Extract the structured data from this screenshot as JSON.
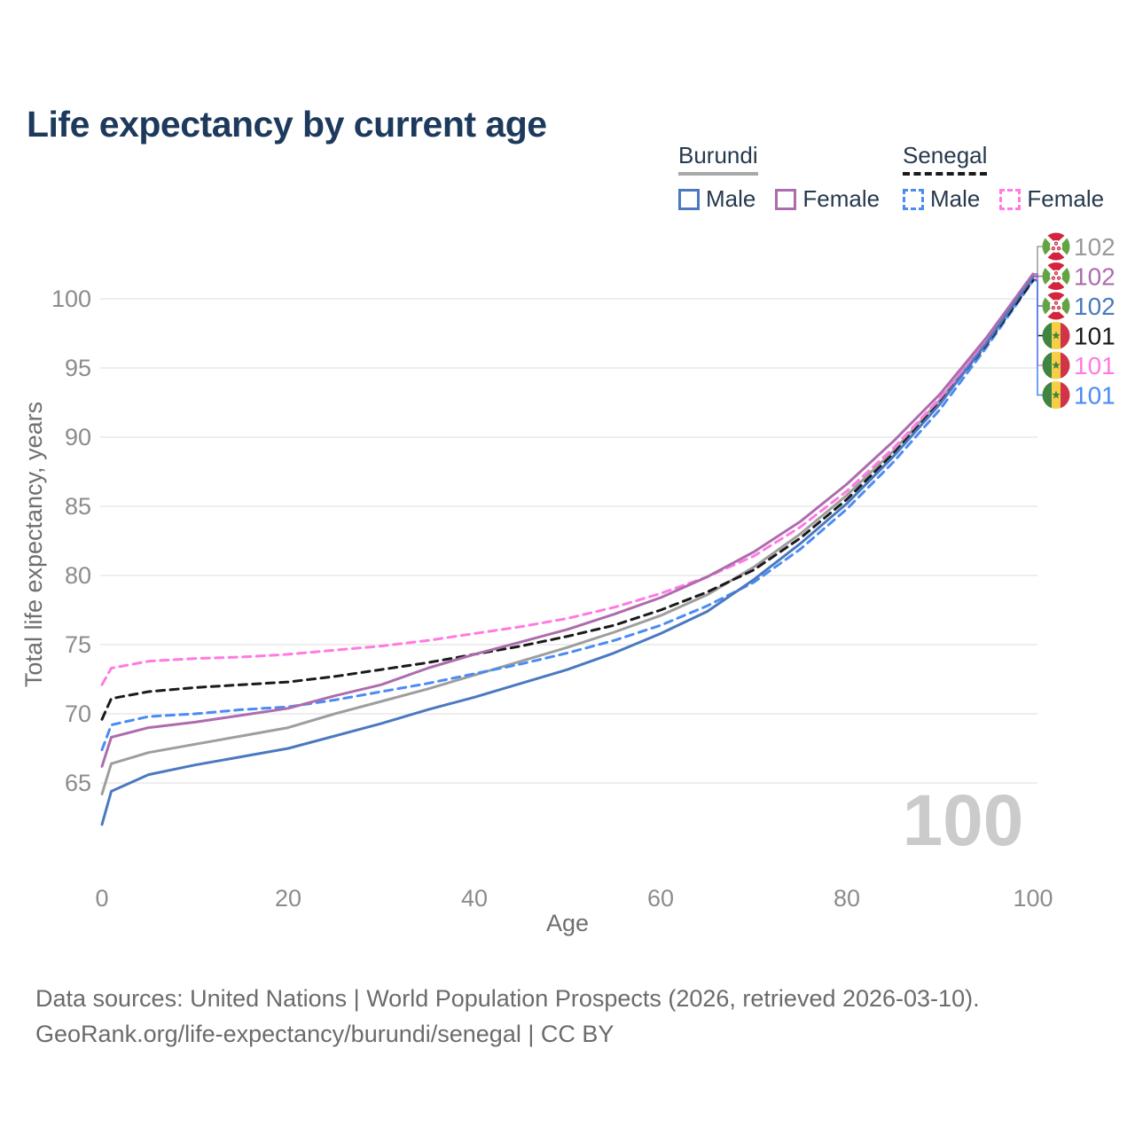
{
  "title": "Life expectancy by current age",
  "watermark": "100",
  "legend": {
    "groups": [
      {
        "label": "Burundi",
        "line": "solid",
        "underline_color": "#a8a8a8",
        "items": [
          {
            "label": "Male",
            "color": "#4a79c0"
          },
          {
            "label": "Female",
            "color": "#ad6cad"
          }
        ]
      },
      {
        "label": "Senegal",
        "line": "dashed",
        "underline_color": "#1a1a1a",
        "items": [
          {
            "label": "Male",
            "color": "#4b8bf4"
          },
          {
            "label": "Female",
            "color": "#ff7ae1"
          }
        ]
      }
    ]
  },
  "footer": {
    "line1": "Data sources: United Nations | World Population Prospects (2026, retrieved 2026-03-10).",
    "line2": "GeoRank.org/life-expectancy/burundi/senegal | CC BY"
  },
  "chart_data": {
    "type": "line",
    "title": "Life expectancy by current age",
    "xlabel": "Age",
    "ylabel": "Total life expectancy, years",
    "x_ticks": [
      0,
      20,
      40,
      60,
      80,
      100
    ],
    "y_ticks": [
      65,
      70,
      75,
      80,
      85,
      90,
      95,
      100
    ],
    "xlim": [
      0,
      100
    ],
    "ylim": [
      61,
      103
    ],
    "grid": "horizontal",
    "legend_position": "top-right",
    "x": [
      0,
      1,
      5,
      10,
      15,
      20,
      25,
      30,
      35,
      40,
      45,
      50,
      55,
      60,
      65,
      70,
      75,
      80,
      85,
      90,
      95,
      100
    ],
    "series": [
      {
        "id": "burundi-all",
        "name": "Burundi - both sexes",
        "country": "Burundi",
        "sex": "all",
        "line": "solid",
        "color": "#9e9e9e",
        "label_color": "#9a9a9a",
        "flag": "burundi",
        "end_label": "102",
        "values": [
          64.2,
          66.4,
          67.2,
          67.8,
          68.4,
          69.0,
          70.0,
          70.9,
          71.8,
          72.8,
          73.8,
          74.8,
          75.9,
          77.1,
          78.6,
          80.6,
          83.0,
          85.8,
          89.0,
          92.7,
          97.0,
          101.7
        ]
      },
      {
        "id": "burundi-female",
        "name": "Burundi - Female",
        "country": "Burundi",
        "sex": "female",
        "line": "solid",
        "color": "#ad6cad",
        "label_color": "#ad6cad",
        "flag": "burundi",
        "end_label": "102",
        "values": [
          66.2,
          68.3,
          69.0,
          69.4,
          69.9,
          70.4,
          71.3,
          72.1,
          73.3,
          74.3,
          75.2,
          76.1,
          77.2,
          78.4,
          79.9,
          81.7,
          83.9,
          86.6,
          89.7,
          93.1,
          97.2,
          101.8
        ]
      },
      {
        "id": "burundi-male",
        "name": "Burundi - Male",
        "country": "Burundi",
        "sex": "male",
        "line": "solid",
        "color": "#4a79c0",
        "label_color": "#4a79c0",
        "flag": "burundi",
        "end_label": "102",
        "values": [
          62.0,
          64.4,
          65.6,
          66.3,
          66.9,
          67.5,
          68.4,
          69.3,
          70.3,
          71.2,
          72.2,
          73.2,
          74.4,
          75.8,
          77.4,
          79.7,
          82.3,
          85.2,
          88.6,
          92.4,
          96.8,
          101.6
        ]
      },
      {
        "id": "senegal-all",
        "name": "Senegal - both sexes",
        "country": "Senegal",
        "sex": "all",
        "line": "dashed",
        "color": "#1a1a1a",
        "label_color": "#1a1a1a",
        "flag": "senegal",
        "end_label": "101",
        "values": [
          69.6,
          71.1,
          71.6,
          71.9,
          72.1,
          72.3,
          72.7,
          73.2,
          73.7,
          74.3,
          74.9,
          75.6,
          76.4,
          77.5,
          78.8,
          80.4,
          82.7,
          85.5,
          88.8,
          92.5,
          96.7,
          101.35
        ]
      },
      {
        "id": "senegal-female",
        "name": "Senegal - Female",
        "country": "Senegal",
        "sex": "female",
        "line": "dashed",
        "color": "#ff7ae1",
        "label_color": "#ff7ae1",
        "flag": "senegal",
        "end_label": "101",
        "values": [
          72.1,
          73.3,
          73.8,
          74.0,
          74.1,
          74.3,
          74.6,
          74.9,
          75.3,
          75.8,
          76.3,
          76.9,
          77.7,
          78.7,
          79.9,
          81.4,
          83.5,
          86.1,
          89.2,
          92.8,
          96.9,
          101.45
        ]
      },
      {
        "id": "senegal-male",
        "name": "Senegal - Male",
        "country": "Senegal",
        "sex": "male",
        "line": "dashed",
        "color": "#4b8bf4",
        "label_color": "#4b8bf4",
        "flag": "senegal",
        "end_label": "101",
        "values": [
          67.4,
          69.2,
          69.8,
          70.0,
          70.3,
          70.5,
          71.0,
          71.6,
          72.2,
          72.9,
          73.6,
          74.4,
          75.3,
          76.4,
          77.8,
          79.5,
          81.9,
          84.8,
          88.2,
          92.0,
          96.5,
          101.3
        ]
      }
    ]
  }
}
